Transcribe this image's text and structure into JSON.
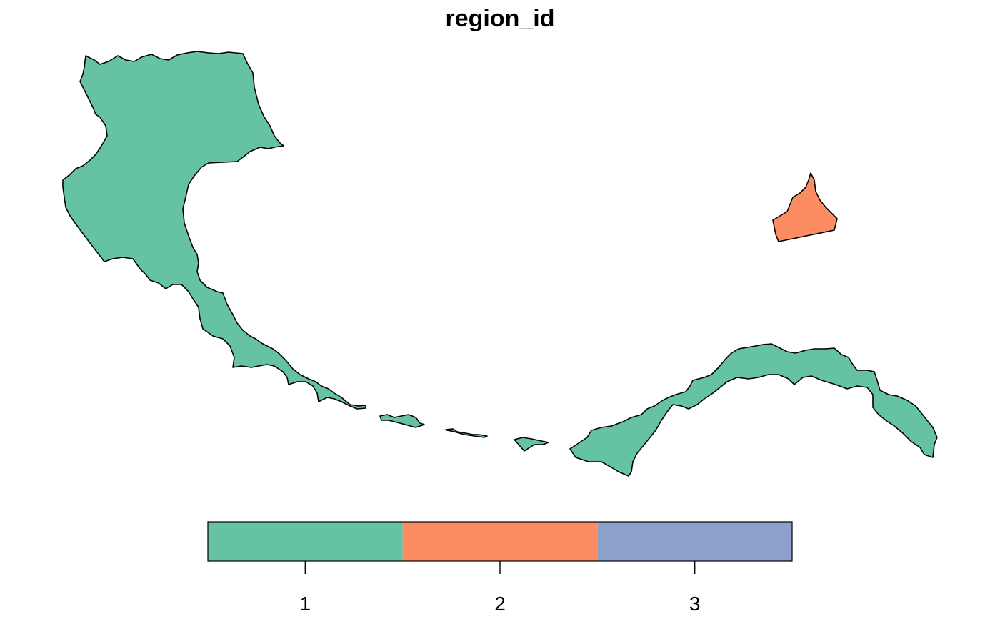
{
  "map": {
    "title": "region_id",
    "regions": [
      {
        "region_id": 1,
        "color": "#66C2A5"
      },
      {
        "region_id": 2,
        "color": "#FC8D62"
      }
    ]
  },
  "legend": {
    "categories": [
      {
        "label": "1",
        "color": "#66C2A5"
      },
      {
        "label": "2",
        "color": "#FC8D62"
      },
      {
        "label": "3",
        "color": "#8DA0CB"
      }
    ]
  }
}
